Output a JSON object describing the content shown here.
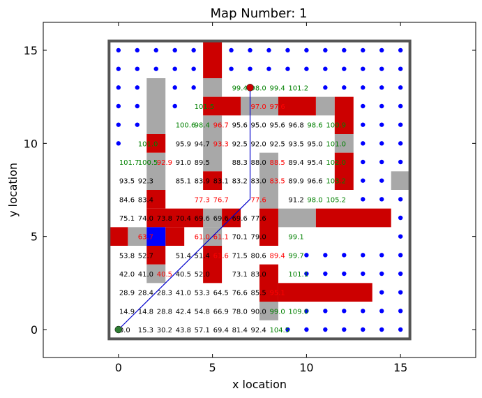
{
  "chart_data": {
    "type": "scatter",
    "title": "Map Number: 1",
    "xlabel": "x location",
    "ylabel": "y location",
    "xlim": [
      -4,
      19
    ],
    "ylim": [
      -1.5,
      16.5
    ],
    "xticks": [
      "0",
      "5",
      "10",
      "15"
    ],
    "yticks": [
      "0",
      "5",
      "10",
      "15"
    ],
    "grid": false,
    "colors": {
      "obstacle": "#cc0000",
      "inflated": "#a8a8a8",
      "unvisited": "#0000ff",
      "path": "#0000cc",
      "start": "#2e7d32",
      "goal": "#cc0000",
      "cost_normal": "#000000",
      "cost_red": "#ff0000",
      "cost_green": "#008000",
      "border": "#555555",
      "robot": "#0000ff"
    },
    "border_rect": {
      "x0": -0.5,
      "y0": -0.5,
      "x1": 15.5,
      "y1": 15.5
    },
    "obstacle_rects": [
      [
        4.5,
        13.5,
        1,
        2
      ],
      [
        4.5,
        11.5,
        2,
        1
      ],
      [
        8.5,
        11.5,
        2,
        1
      ],
      [
        11.5,
        10.5,
        1,
        2
      ],
      [
        1.5,
        9.5,
        1,
        1
      ],
      [
        4.5,
        7.5,
        1,
        1
      ],
      [
        11.5,
        7.5,
        1,
        2
      ],
      [
        1.5,
        6.5,
        1,
        1
      ],
      [
        1.5,
        5.5,
        3,
        1
      ],
      [
        5.5,
        5.5,
        1,
        1
      ],
      [
        7.5,
        4.5,
        1,
        2
      ],
      [
        10.5,
        5.5,
        4,
        1
      ],
      [
        -0.5,
        4.5,
        1,
        1
      ],
      [
        2.5,
        4.5,
        1,
        1
      ],
      [
        1.5,
        3.5,
        1,
        1
      ],
      [
        4.5,
        2.5,
        1,
        2
      ],
      [
        7.5,
        1.5,
        1,
        2
      ],
      [
        8.5,
        1.5,
        5,
        1
      ]
    ],
    "inflated_rects": [
      [
        1.5,
        10.5,
        1,
        3
      ],
      [
        4.5,
        12.5,
        1,
        1
      ],
      [
        4.5,
        8.5,
        1,
        3
      ],
      [
        6.5,
        11.5,
        2,
        1
      ],
      [
        10.5,
        11.5,
        1,
        1
      ],
      [
        11.5,
        9.5,
        1,
        1
      ],
      [
        1.5,
        7.5,
        1,
        2
      ],
      [
        7.5,
        6.5,
        1,
        3
      ],
      [
        14.5,
        7.5,
        1,
        1
      ],
      [
        4.5,
        5.5,
        1,
        1
      ],
      [
        8.5,
        5.5,
        2,
        1
      ],
      [
        0.5,
        4.5,
        1,
        1
      ],
      [
        4.5,
        4.5,
        1,
        1
      ],
      [
        1.5,
        2.5,
        1,
        1
      ],
      [
        7.5,
        0.5,
        1,
        1
      ]
    ],
    "robot_rect": [
      1.5,
      4.5,
      1,
      1
    ],
    "path": [
      [
        0,
        0
      ],
      [
        7,
        7
      ],
      [
        7,
        13
      ]
    ],
    "start": [
      0,
      0
    ],
    "goal": [
      7,
      13
    ],
    "cost_labels": [
      {
        "x": 0,
        "y": 0,
        "t": "0.0",
        "c": "n"
      },
      {
        "x": 1,
        "y": 0,
        "t": "15.3",
        "c": "n"
      },
      {
        "x": 2,
        "y": 0,
        "t": "30.2",
        "c": "n"
      },
      {
        "x": 3,
        "y": 0,
        "t": "43.8",
        "c": "n"
      },
      {
        "x": 4,
        "y": 0,
        "t": "57.1",
        "c": "n"
      },
      {
        "x": 5,
        "y": 0,
        "t": "69.4",
        "c": "n"
      },
      {
        "x": 6,
        "y": 0,
        "t": "81.4",
        "c": "n"
      },
      {
        "x": 7,
        "y": 0,
        "t": "92.4",
        "c": "n"
      },
      {
        "x": 8,
        "y": 0,
        "t": "104.5",
        "c": "g"
      },
      {
        "x": 0,
        "y": 1,
        "t": "14.9",
        "c": "n"
      },
      {
        "x": 1,
        "y": 1,
        "t": "14.8",
        "c": "n"
      },
      {
        "x": 2,
        "y": 1,
        "t": "28.8",
        "c": "n"
      },
      {
        "x": 3,
        "y": 1,
        "t": "42.4",
        "c": "n"
      },
      {
        "x": 4,
        "y": 1,
        "t": "54.8",
        "c": "n"
      },
      {
        "x": 5,
        "y": 1,
        "t": "66.9",
        "c": "n"
      },
      {
        "x": 6,
        "y": 1,
        "t": "78.0",
        "c": "n"
      },
      {
        "x": 7,
        "y": 1,
        "t": "90.0",
        "c": "n"
      },
      {
        "x": 8,
        "y": 1,
        "t": "99.0",
        "c": "g"
      },
      {
        "x": 9,
        "y": 1,
        "t": "109.0",
        "c": "g"
      },
      {
        "x": 0,
        "y": 2,
        "t": "28.9",
        "c": "n"
      },
      {
        "x": 1,
        "y": 2,
        "t": "28.4",
        "c": "n"
      },
      {
        "x": 2,
        "y": 2,
        "t": "28.3",
        "c": "n"
      },
      {
        "x": 3,
        "y": 2,
        "t": "41.0",
        "c": "n"
      },
      {
        "x": 4,
        "y": 2,
        "t": "53.3",
        "c": "n"
      },
      {
        "x": 5,
        "y": 2,
        "t": "64.5",
        "c": "n"
      },
      {
        "x": 6,
        "y": 2,
        "t": "76.6",
        "c": "n"
      },
      {
        "x": 7,
        "y": 2,
        "t": "85.5",
        "c": "n"
      },
      {
        "x": 8,
        "y": 2,
        "t": "95.1",
        "c": "r"
      },
      {
        "x": 0,
        "y": 3,
        "t": "42.0",
        "c": "n"
      },
      {
        "x": 1,
        "y": 3,
        "t": "41.0",
        "c": "n"
      },
      {
        "x": 2,
        "y": 3,
        "t": "40.5",
        "c": "r"
      },
      {
        "x": 3,
        "y": 3,
        "t": "40.5",
        "c": "n"
      },
      {
        "x": 4,
        "y": 3,
        "t": "52.0",
        "c": "n"
      },
      {
        "x": 6,
        "y": 3,
        "t": "73.1",
        "c": "n"
      },
      {
        "x": 7,
        "y": 3,
        "t": "83.0",
        "c": "n"
      },
      {
        "x": 9,
        "y": 3,
        "t": "101.1",
        "c": "g"
      },
      {
        "x": 0,
        "y": 4,
        "t": "53.8",
        "c": "n"
      },
      {
        "x": 1,
        "y": 4,
        "t": "52.7",
        "c": "n"
      },
      {
        "x": 3,
        "y": 4,
        "t": "51.4",
        "c": "n"
      },
      {
        "x": 4,
        "y": 4,
        "t": "51.4",
        "c": "n"
      },
      {
        "x": 5,
        "y": 4,
        "t": "61.6",
        "c": "r"
      },
      {
        "x": 6,
        "y": 4,
        "t": "71.5",
        "c": "n"
      },
      {
        "x": 7,
        "y": 4,
        "t": "80.6",
        "c": "n"
      },
      {
        "x": 8,
        "y": 4,
        "t": "89.4",
        "c": "r"
      },
      {
        "x": 9,
        "y": 4,
        "t": "99.7",
        "c": "g"
      },
      {
        "x": 1,
        "y": 5,
        "t": "63.7",
        "c": "r"
      },
      {
        "x": 4,
        "y": 5,
        "t": "61.0",
        "c": "r"
      },
      {
        "x": 5,
        "y": 5,
        "t": "61.1",
        "c": "r"
      },
      {
        "x": 6,
        "y": 5,
        "t": "70.1",
        "c": "n"
      },
      {
        "x": 7,
        "y": 5,
        "t": "79.0",
        "c": "n"
      },
      {
        "x": 9,
        "y": 5,
        "t": "99.1",
        "c": "g"
      },
      {
        "x": 0,
        "y": 6,
        "t": "75.1",
        "c": "n"
      },
      {
        "x": 1,
        "y": 6,
        "t": "74.0",
        "c": "n"
      },
      {
        "x": 2,
        "y": 6,
        "t": "73.8",
        "c": "n"
      },
      {
        "x": 3,
        "y": 6,
        "t": "70.4",
        "c": "n"
      },
      {
        "x": 4,
        "y": 6,
        "t": "69.6",
        "c": "n"
      },
      {
        "x": 5,
        "y": 6,
        "t": "69.6",
        "c": "n"
      },
      {
        "x": 6,
        "y": 6,
        "t": "69.6",
        "c": "n"
      },
      {
        "x": 7,
        "y": 6,
        "t": "77.6",
        "c": "n"
      },
      {
        "x": 0,
        "y": 7,
        "t": "84.6",
        "c": "n"
      },
      {
        "x": 1,
        "y": 7,
        "t": "83.4",
        "c": "n"
      },
      {
        "x": 4,
        "y": 7,
        "t": "77.3",
        "c": "r"
      },
      {
        "x": 5,
        "y": 7,
        "t": "76.7",
        "c": "r"
      },
      {
        "x": 7,
        "y": 7,
        "t": "77.6",
        "c": "r"
      },
      {
        "x": 9,
        "y": 7,
        "t": "91.2",
        "c": "n"
      },
      {
        "x": 10,
        "y": 7,
        "t": "98.0",
        "c": "g"
      },
      {
        "x": 11,
        "y": 7,
        "t": "105.2",
        "c": "g"
      },
      {
        "x": 0,
        "y": 8,
        "t": "93.5",
        "c": "n"
      },
      {
        "x": 1,
        "y": 8,
        "t": "92.3",
        "c": "n"
      },
      {
        "x": 3,
        "y": 8,
        "t": "85.1",
        "c": "n"
      },
      {
        "x": 4,
        "y": 8,
        "t": "83.9",
        "c": "n"
      },
      {
        "x": 5,
        "y": 8,
        "t": "83.1",
        "c": "n"
      },
      {
        "x": 6,
        "y": 8,
        "t": "83.2",
        "c": "n"
      },
      {
        "x": 7,
        "y": 8,
        "t": "83.0",
        "c": "n"
      },
      {
        "x": 8,
        "y": 8,
        "t": "83.5",
        "c": "r"
      },
      {
        "x": 9,
        "y": 8,
        "t": "89.9",
        "c": "n"
      },
      {
        "x": 10,
        "y": 8,
        "t": "96.6",
        "c": "n"
      },
      {
        "x": 11,
        "y": 8,
        "t": "103.2",
        "c": "g"
      },
      {
        "x": 0,
        "y": 9,
        "t": "101.7",
        "c": "g"
      },
      {
        "x": 1,
        "y": 9,
        "t": "100.5",
        "c": "g"
      },
      {
        "x": 2,
        "y": 9,
        "t": "92.9",
        "c": "r"
      },
      {
        "x": 3,
        "y": 9,
        "t": "91.0",
        "c": "n"
      },
      {
        "x": 4,
        "y": 9,
        "t": "89.5",
        "c": "n"
      },
      {
        "x": 6,
        "y": 9,
        "t": "88.3",
        "c": "n"
      },
      {
        "x": 7,
        "y": 9,
        "t": "88.0",
        "c": "n"
      },
      {
        "x": 8,
        "y": 9,
        "t": "88.5",
        "c": "r"
      },
      {
        "x": 9,
        "y": 9,
        "t": "89.4",
        "c": "n"
      },
      {
        "x": 10,
        "y": 9,
        "t": "95.4",
        "c": "n"
      },
      {
        "x": 11,
        "y": 9,
        "t": "102.0",
        "c": "g"
      },
      {
        "x": 1,
        "y": 10,
        "t": "101.0",
        "c": "g"
      },
      {
        "x": 3,
        "y": 10,
        "t": "95.9",
        "c": "n"
      },
      {
        "x": 4,
        "y": 10,
        "t": "94.7",
        "c": "n"
      },
      {
        "x": 5,
        "y": 10,
        "t": "93.3",
        "c": "r"
      },
      {
        "x": 6,
        "y": 10,
        "t": "92.5",
        "c": "n"
      },
      {
        "x": 7,
        "y": 10,
        "t": "92.0",
        "c": "n"
      },
      {
        "x": 8,
        "y": 10,
        "t": "92.5",
        "c": "n"
      },
      {
        "x": 9,
        "y": 10,
        "t": "93.5",
        "c": "n"
      },
      {
        "x": 10,
        "y": 10,
        "t": "95.0",
        "c": "n"
      },
      {
        "x": 11,
        "y": 10,
        "t": "101.0",
        "c": "g"
      },
      {
        "x": 3,
        "y": 11,
        "t": "100.6",
        "c": "g"
      },
      {
        "x": 4,
        "y": 11,
        "t": "98.4",
        "c": "g"
      },
      {
        "x": 5,
        "y": 11,
        "t": "96.7",
        "c": "r"
      },
      {
        "x": 6,
        "y": 11,
        "t": "95.6",
        "c": "n"
      },
      {
        "x": 7,
        "y": 11,
        "t": "95.0",
        "c": "n"
      },
      {
        "x": 8,
        "y": 11,
        "t": "95.6",
        "c": "n"
      },
      {
        "x": 9,
        "y": 11,
        "t": "96.8",
        "c": "n"
      },
      {
        "x": 10,
        "y": 11,
        "t": "98.6",
        "c": "g"
      },
      {
        "x": 11,
        "y": 11,
        "t": "100.9",
        "c": "g"
      },
      {
        "x": 4,
        "y": 12,
        "t": "101.5",
        "c": "g"
      },
      {
        "x": 7,
        "y": 12,
        "t": "97.0",
        "c": "r"
      },
      {
        "x": 8,
        "y": 12,
        "t": "97.6",
        "c": "r"
      },
      {
        "x": 6,
        "y": 13,
        "t": "99.4",
        "c": "g"
      },
      {
        "x": 7,
        "y": 13,
        "t": "98.0",
        "c": "g"
      },
      {
        "x": 8,
        "y": 13,
        "t": "99.4",
        "c": "g"
      },
      {
        "x": 9,
        "y": 13,
        "t": "101.2",
        "c": "g"
      }
    ],
    "dots": [
      [
        0,
        15
      ],
      [
        1,
        15
      ],
      [
        2,
        15
      ],
      [
        3,
        15
      ],
      [
        4,
        15
      ],
      [
        6,
        15
      ],
      [
        7,
        15
      ],
      [
        8,
        15
      ],
      [
        9,
        15
      ],
      [
        10,
        15
      ],
      [
        11,
        15
      ],
      [
        12,
        15
      ],
      [
        13,
        15
      ],
      [
        14,
        15
      ],
      [
        15,
        15
      ],
      [
        0,
        14
      ],
      [
        1,
        14
      ],
      [
        2,
        14
      ],
      [
        3,
        14
      ],
      [
        4,
        14
      ],
      [
        6,
        14
      ],
      [
        7,
        14
      ],
      [
        8,
        14
      ],
      [
        9,
        14
      ],
      [
        10,
        14
      ],
      [
        11,
        14
      ],
      [
        12,
        14
      ],
      [
        13,
        14
      ],
      [
        14,
        14
      ],
      [
        15,
        14
      ],
      [
        0,
        13
      ],
      [
        1,
        13
      ],
      [
        3,
        13
      ],
      [
        4,
        13
      ],
      [
        11,
        13
      ],
      [
        12,
        13
      ],
      [
        13,
        13
      ],
      [
        14,
        13
      ],
      [
        15,
        13
      ],
      [
        0,
        12
      ],
      [
        1,
        12
      ],
      [
        3,
        12
      ],
      [
        13,
        12
      ],
      [
        14,
        12
      ],
      [
        15,
        12
      ],
      [
        0,
        11
      ],
      [
        1,
        11
      ],
      [
        13,
        11
      ],
      [
        14,
        11
      ],
      [
        15,
        11
      ],
      [
        0,
        10
      ],
      [
        13,
        10
      ],
      [
        14,
        10
      ],
      [
        15,
        10
      ],
      [
        13,
        9
      ],
      [
        14,
        9
      ],
      [
        15,
        9
      ],
      [
        13,
        8
      ],
      [
        14,
        8
      ],
      [
        13,
        7
      ],
      [
        14,
        7
      ],
      [
        15,
        7
      ],
      [
        15,
        6
      ],
      [
        15,
        5
      ],
      [
        10,
        4
      ],
      [
        11,
        4
      ],
      [
        12,
        4
      ],
      [
        13,
        4
      ],
      [
        14,
        4
      ],
      [
        15,
        4
      ],
      [
        10,
        3
      ],
      [
        11,
        3
      ],
      [
        12,
        3
      ],
      [
        13,
        3
      ],
      [
        14,
        3
      ],
      [
        15,
        3
      ],
      [
        14,
        2
      ],
      [
        15,
        2
      ],
      [
        10,
        1
      ],
      [
        11,
        1
      ],
      [
        12,
        1
      ],
      [
        13,
        1
      ],
      [
        14,
        1
      ],
      [
        15,
        1
      ],
      [
        9,
        0
      ],
      [
        10,
        0
      ],
      [
        11,
        0
      ],
      [
        12,
        0
      ],
      [
        13,
        0
      ],
      [
        14,
        0
      ],
      [
        15,
        0
      ]
    ]
  }
}
